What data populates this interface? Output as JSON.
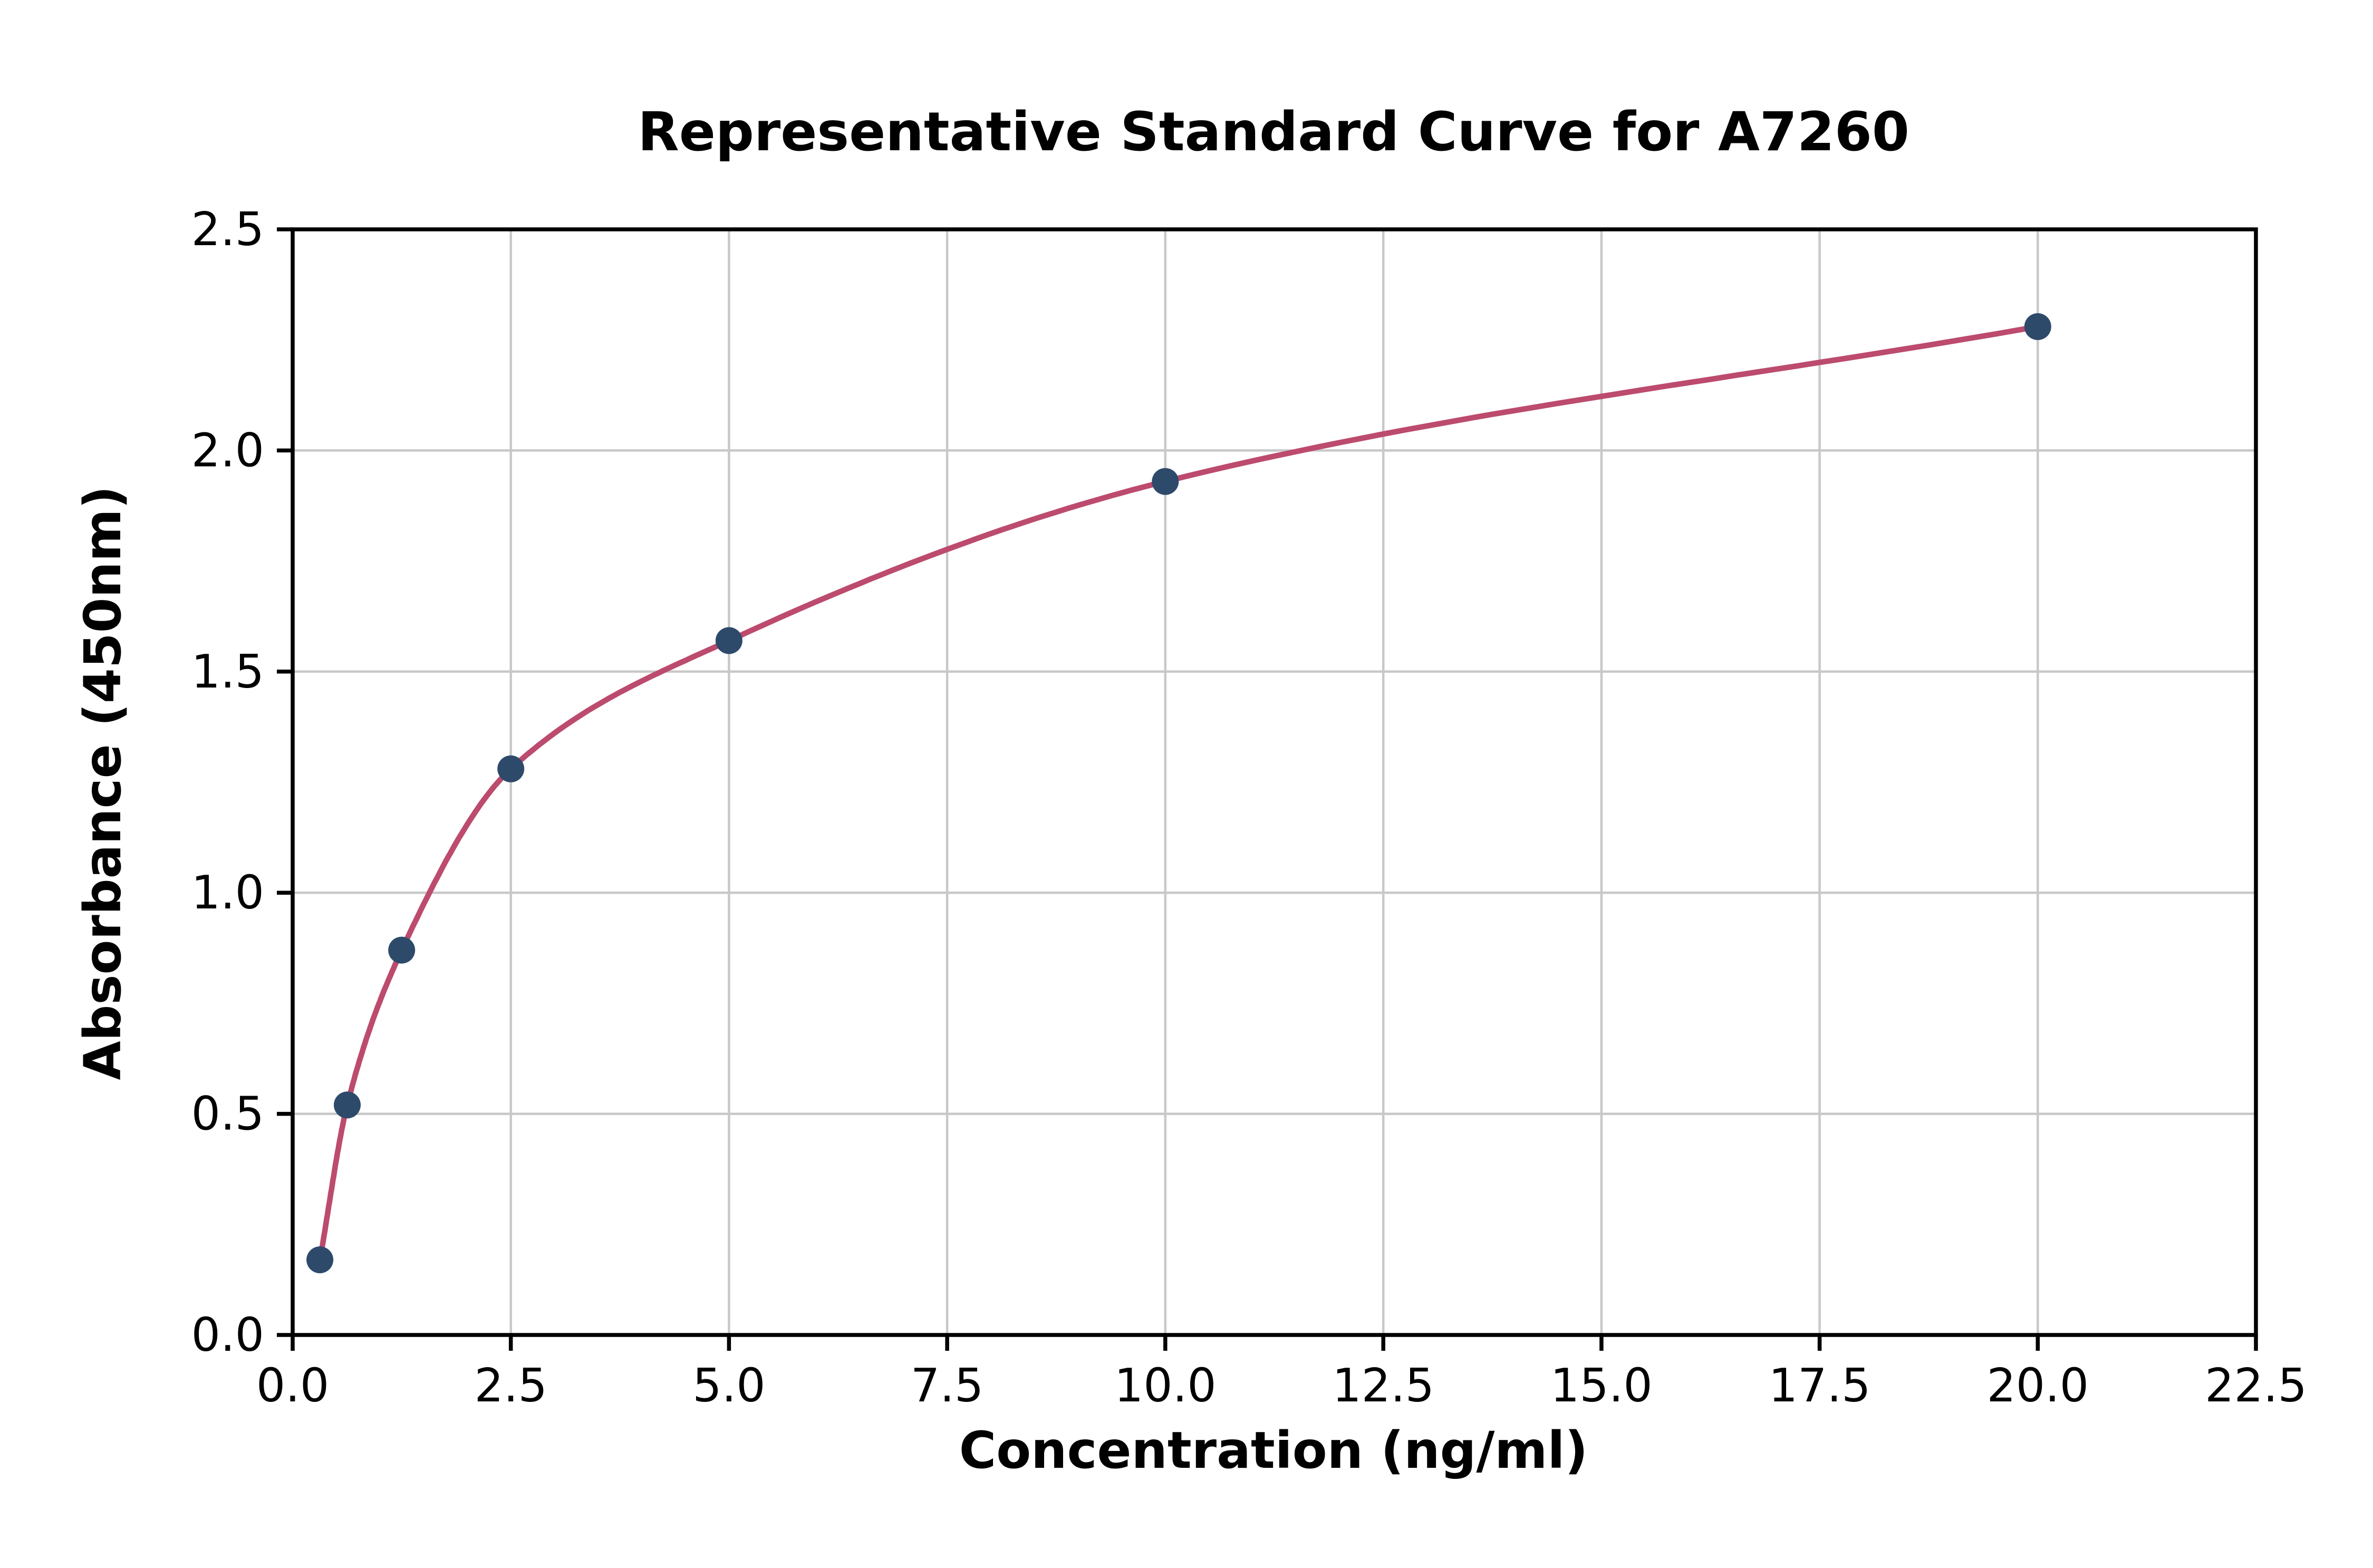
{
  "chart_data": {
    "type": "scatter",
    "title": "Representative Standard Curve for A7260",
    "xlabel": "Concentration (ng/ml)",
    "ylabel": "Absorbance (450nm)",
    "xlim": [
      0,
      22.5
    ],
    "ylim": [
      0,
      2.5
    ],
    "grid": true,
    "legend_position": "none",
    "xticks": {
      "values": [
        0,
        2.5,
        5,
        7.5,
        10,
        12.5,
        15,
        17.5,
        20,
        22.5
      ],
      "labels": [
        "0.0",
        "2.5",
        "5.0",
        "7.5",
        "10.0",
        "12.5",
        "15.0",
        "17.5",
        "20.0",
        "22.5"
      ]
    },
    "yticks": {
      "values": [
        0,
        0.5,
        1,
        1.5,
        2,
        2.5
      ],
      "labels": [
        "0.0",
        "0.5",
        "1.0",
        "1.5",
        "2.0",
        "2.5"
      ]
    },
    "series": [
      {
        "name": "standard-points",
        "type": "scatter",
        "x": [
          0.3125,
          0.625,
          1.25,
          2.5,
          5,
          10,
          20
        ],
        "y": [
          0.17,
          0.52,
          0.87,
          1.28,
          1.57,
          1.93,
          2.28
        ],
        "marker_color": "#2e4a6b",
        "marker_size": 8.5
      }
    ],
    "fit_curve": {
      "name": "fitted-standard-curve",
      "type": "smooth-through-points",
      "color": "#bc4b6e",
      "width": 3.5
    },
    "style": {
      "grid_color": "#c8c8c8",
      "spine_color": "#000000",
      "background": "#ffffff"
    }
  }
}
